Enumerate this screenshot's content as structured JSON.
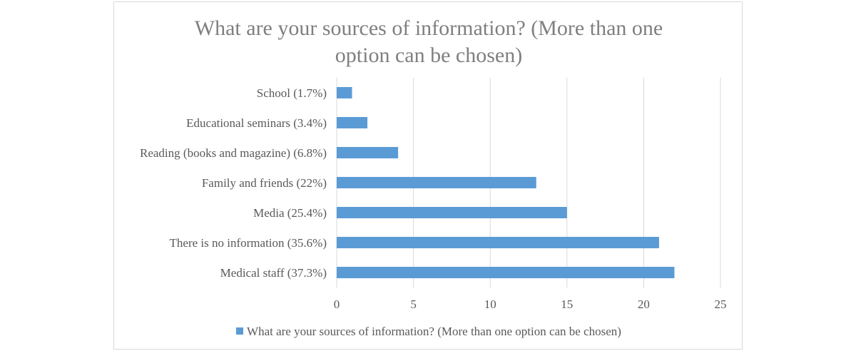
{
  "chart_data": {
    "type": "bar",
    "orientation": "horizontal",
    "title_line1": "What are your sources of information?  (More than one",
    "title_line2": "option can be chosen)",
    "categories": [
      "School (1.7%)",
      "Educational seminars (3.4%)",
      "Reading (books and magazine) (6.8%)",
      "Family and friends (22%)",
      "Media (25.4%)",
      "There is no information (35.6%)",
      "Medical staff (37.3%)"
    ],
    "series": [
      {
        "name": "What are your sources of information?  (More than one option can be chosen)",
        "values": [
          1,
          2,
          4,
          13,
          15,
          21,
          22
        ]
      }
    ],
    "xlim": [
      0,
      25
    ],
    "xticks": [
      "0",
      "5",
      "10",
      "15",
      "20",
      "25"
    ],
    "xlabel": "",
    "ylabel": "",
    "grid": "vertical",
    "legend_position": "bottom",
    "colors": {
      "bar": "#5b9bd5",
      "grid": "#d9d9d9",
      "text": "#595959",
      "title": "#7f7f7f"
    }
  }
}
